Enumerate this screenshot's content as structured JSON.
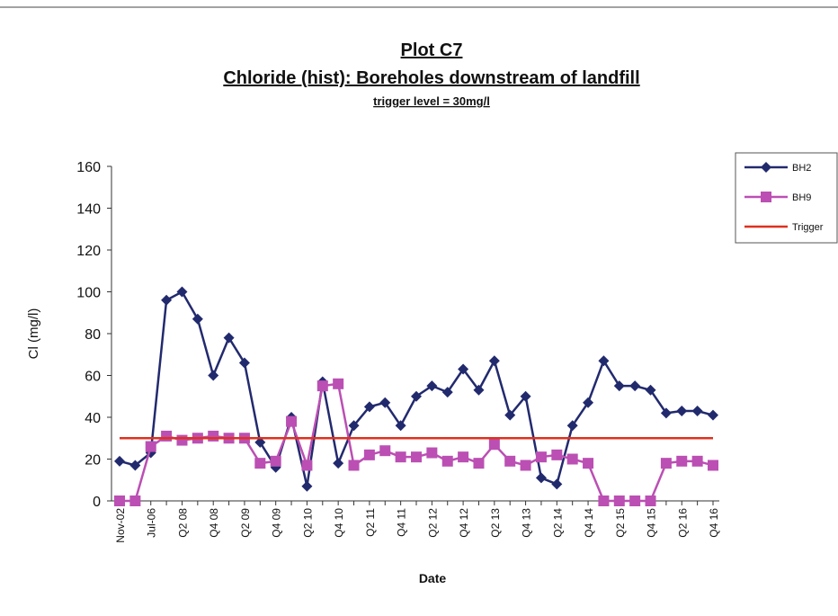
{
  "chart_data": {
    "type": "line",
    "title": "Plot C7",
    "subtitle": "Chloride (hist): Boreholes downstream of landfill",
    "annotation": "trigger level = 30mg/l",
    "x_label": "Date",
    "y_label": "Cl (mg/l)",
    "categories": [
      "Nov-02",
      null,
      "Jul-06",
      null,
      "Q2 08",
      null,
      "Q4 08",
      null,
      "Q2 09",
      null,
      "Q4 09",
      null,
      "Q2 10",
      null,
      "Q4 10",
      null,
      "Q2 11",
      null,
      "Q4 11",
      null,
      "Q2 12",
      null,
      "Q4 12",
      null,
      "Q2 13",
      null,
      "Q4 13",
      null,
      "Q2 14",
      null,
      "Q4 14",
      null,
      "Q2 15",
      null,
      "Q4 15",
      null,
      "Q2 16",
      null,
      "Q4 16"
    ],
    "series": [
      {
        "name": "BH2",
        "color": "#222a6e",
        "marker": "diamond",
        "values": [
          19,
          17,
          23,
          96,
          100,
          87,
          60,
          78,
          66,
          28,
          16,
          40,
          7,
          57,
          18,
          36,
          45,
          47,
          36,
          50,
          55,
          52,
          63,
          53,
          67,
          41,
          50,
          11,
          8,
          36,
          47,
          67,
          55,
          55,
          53,
          42,
          43,
          43,
          41
        ]
      },
      {
        "name": "BH9",
        "color": "#bb4fb3",
        "marker": "square",
        "values": [
          0,
          0,
          26,
          31,
          29,
          30,
          31,
          30,
          30,
          18,
          19,
          38,
          17,
          55,
          56,
          17,
          22,
          24,
          21,
          21,
          23,
          19,
          21,
          18,
          27,
          19,
          17,
          21,
          22,
          20,
          18,
          0,
          0,
          0,
          0,
          18,
          19,
          19,
          17
        ]
      },
      {
        "name": "Trigger",
        "color": "#e0301e",
        "marker": "none",
        "values": [
          30,
          30,
          30,
          30,
          30,
          30,
          30,
          30,
          30,
          30,
          30,
          30,
          30,
          30,
          30,
          30,
          30,
          30,
          30,
          30,
          30,
          30,
          30,
          30,
          30,
          30,
          30,
          30,
          30,
          30,
          30,
          30,
          30,
          30,
          30,
          30,
          30,
          30,
          30
        ]
      }
    ],
    "ylim": [
      0,
      160
    ],
    "yticks": [
      0,
      20,
      40,
      60,
      80,
      100,
      120,
      140,
      160
    ],
    "grid": false,
    "legend": "right"
  }
}
